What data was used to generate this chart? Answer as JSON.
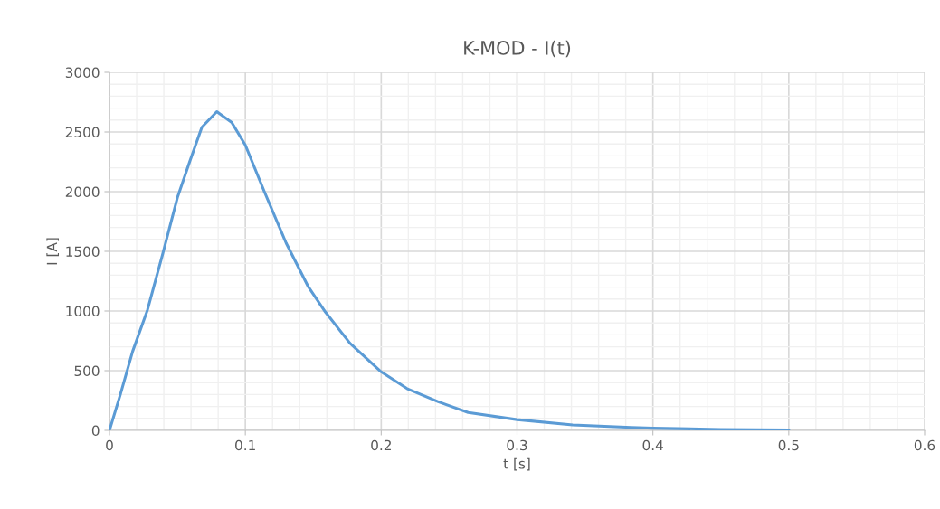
{
  "chart_data": {
    "type": "line",
    "title": "K-MOD - I(t)",
    "xlabel": "t [s]",
    "ylabel": "I [A]",
    "x": [
      0,
      0.008,
      0.017,
      0.028,
      0.039,
      0.05,
      0.059,
      0.068,
      0.079,
      0.09,
      0.1,
      0.114,
      0.13,
      0.146,
      0.159,
      0.177,
      0.2,
      0.219,
      0.242,
      0.264,
      0.3,
      0.341,
      0.384,
      0.4,
      0.45,
      0.5
    ],
    "series": [
      {
        "color": "#5b9bd5",
        "values": [
          0,
          300,
          660,
          1010,
          1470,
          1950,
          2250,
          2540,
          2670,
          2580,
          2390,
          2000,
          1570,
          1210,
          990,
          730,
          490,
          350,
          240,
          150,
          90,
          45,
          25,
          18,
          8,
          3
        ]
      }
    ],
    "xlim": [
      0,
      0.6
    ],
    "xticks": [
      0,
      0.1,
      0.2,
      0.3,
      0.4,
      0.5,
      0.6
    ],
    "ylim": [
      0,
      3000
    ],
    "yticks": [
      0,
      500,
      1000,
      1500,
      2000,
      2500,
      3000
    ],
    "grid": true,
    "marker": "none",
    "line_style": "solid"
  }
}
